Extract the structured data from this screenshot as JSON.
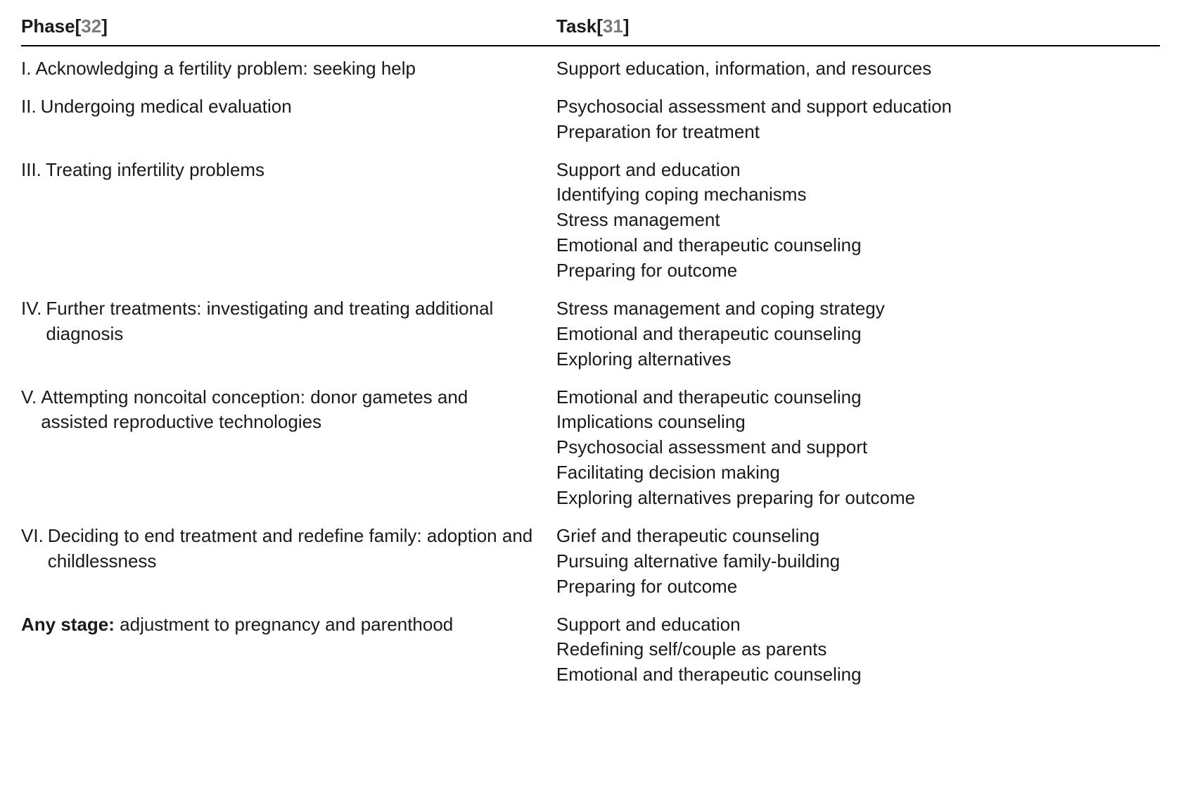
{
  "colors": {
    "background": "#ffffff",
    "text": "#1a1a1a",
    "ref": "#7a7a7a",
    "rule": "#000000"
  },
  "typography": {
    "font_family": "Segoe UI / Myriad Pro / Helvetica Neue / Arial",
    "font_size_pt": 20,
    "line_height": 1.38,
    "header_weight": 700
  },
  "header": {
    "phase_label": "Phase",
    "phase_ref": "32",
    "task_label": "Task",
    "task_ref": "31"
  },
  "rows": [
    {
      "numeral": "I.",
      "phase": "Acknowledging a fertility problem: seeking help",
      "hanging": false,
      "tasks": [
        "Support education, information, and resources"
      ]
    },
    {
      "numeral": "II.",
      "phase": "Undergoing medical evaluation",
      "hanging": false,
      "tasks": [
        "Psychosocial assessment and support education",
        "Preparation for treatment"
      ]
    },
    {
      "numeral": "III.",
      "phase": "Treating infertility problems",
      "hanging": false,
      "tasks": [
        "Support and education",
        "Identifying coping mechanisms",
        "Stress management",
        "Emotional and therapeutic counseling",
        "Preparing for outcome"
      ]
    },
    {
      "numeral": "IV.",
      "phase": "Further treatments: investigating and treating additional diagnosis",
      "hanging": true,
      "tasks": [
        "Stress management and coping strategy",
        "Emotional and therapeutic counseling",
        "Exploring alternatives"
      ]
    },
    {
      "numeral": "V.",
      "phase": "Attempting noncoital conception: donor gametes and assisted reproductive technologies",
      "hanging": true,
      "tasks": [
        "Emotional and therapeutic counseling",
        "Implications counseling",
        "Psychosocial assessment and support",
        "Facilitating decision making",
        "Exploring alternatives preparing for outcome"
      ]
    },
    {
      "numeral": "VI.",
      "phase": "Deciding to end treatment and redefine family: adoption and childlessness",
      "hanging": true,
      "tasks": [
        "Grief and therapeutic counseling",
        "Pursuing alternative family-building",
        "Preparing for outcome"
      ]
    },
    {
      "numeral": "",
      "phase_bold_prefix": "Any stage:",
      "phase_rest": " adjustment to pregnancy and parenthood",
      "hanging": false,
      "tasks": [
        "Support and education",
        "Redefining self/couple as parents",
        "Emotional and therapeutic counseling"
      ]
    }
  ]
}
